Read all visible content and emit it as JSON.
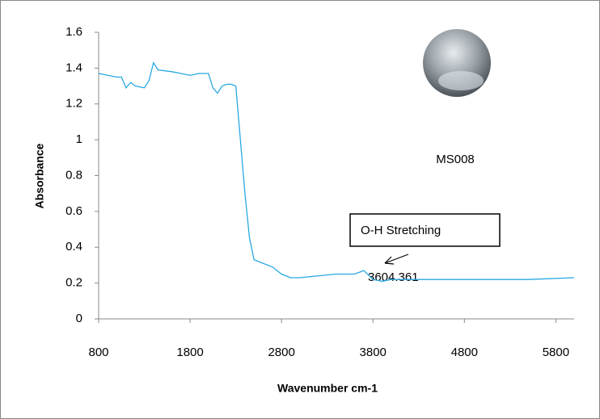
{
  "chart_data": {
    "type": "line",
    "x_label": "Wavenumber cm-1",
    "y_label": "Absorbance",
    "x": [
      800,
      900,
      1000,
      1050,
      1100,
      1150,
      1200,
      1300,
      1350,
      1400,
      1450,
      1600,
      1700,
      1800,
      1900,
      2000,
      2050,
      2100,
      2150,
      2200,
      2250,
      2300,
      2350,
      2400,
      2450,
      2500,
      2600,
      2700,
      2800,
      2900,
      3000,
      3200,
      3400,
      3600,
      3700,
      3800,
      3900,
      4000,
      4200,
      4500,
      5000,
      5500,
      6000
    ],
    "series": [
      {
        "name": "MS008",
        "color": "#29a8e0",
        "values": [
          1.37,
          1.36,
          1.35,
          1.35,
          1.29,
          1.32,
          1.3,
          1.29,
          1.33,
          1.43,
          1.39,
          1.38,
          1.37,
          1.36,
          1.37,
          1.37,
          1.29,
          1.26,
          1.3,
          1.31,
          1.31,
          1.3,
          1.0,
          0.7,
          0.45,
          0.33,
          0.31,
          0.29,
          0.25,
          0.23,
          0.23,
          0.24,
          0.25,
          0.25,
          0.27,
          0.22,
          0.21,
          0.22,
          0.22,
          0.22,
          0.22,
          0.22,
          0.23
        ]
      }
    ],
    "xlim": [
      800,
      6000
    ],
    "xticks": [
      800,
      1800,
      2800,
      3800,
      4800,
      5800
    ],
    "ylim": [
      0,
      1.6
    ],
    "yticks": [
      0,
      0.2,
      0.4,
      0.6,
      0.8,
      1,
      1.2,
      1.4,
      1.6
    ],
    "grid": false,
    "annotations": [
      {
        "text": "MS008"
      },
      {
        "text": "O-H Stretching"
      },
      {
        "text": "3604.361"
      }
    ]
  }
}
